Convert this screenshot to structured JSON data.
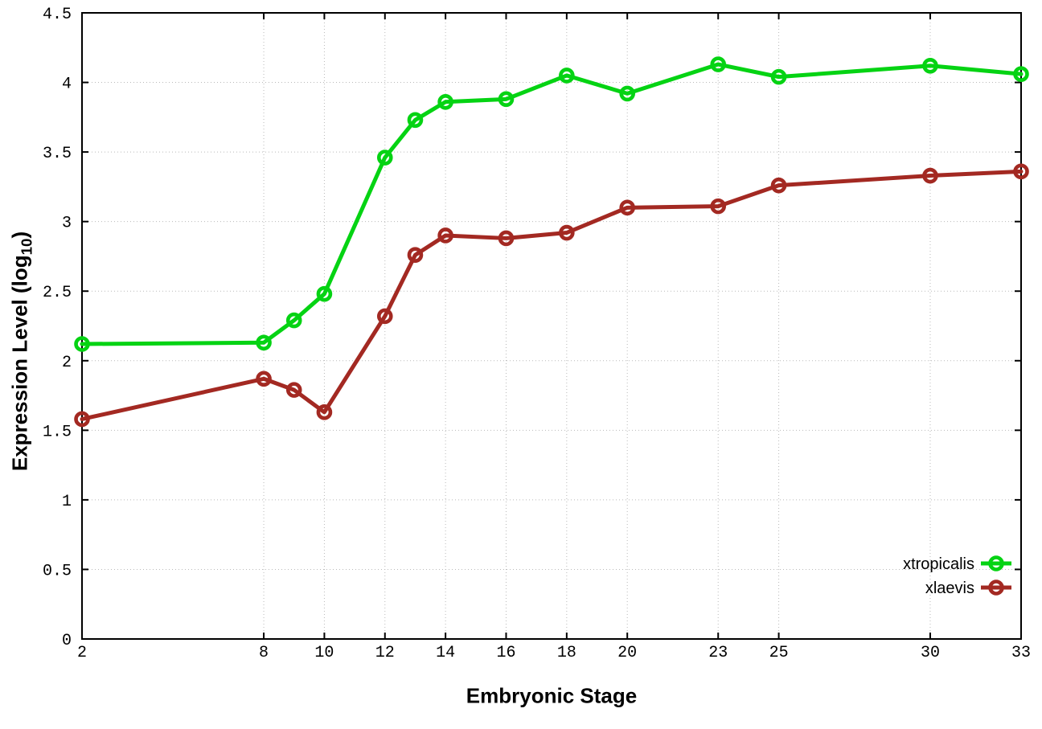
{
  "figure": {
    "background": "#ffffff",
    "border_color": "#000000",
    "grid_color": "#b9b9b9"
  },
  "axes": {
    "x_title": "Embryonic Stage",
    "y_title_main": "Expression Level (log",
    "y_title_sub": "10",
    "y_title_close": ")"
  },
  "chart_data": {
    "type": "line",
    "title": "",
    "xlabel": "Embryonic Stage",
    "ylabel": "Expression Level (log10)",
    "xlim": [
      2,
      33
    ],
    "ylim": [
      0,
      4.5
    ],
    "x_ticks": [
      2,
      8,
      10,
      12,
      14,
      16,
      18,
      20,
      23,
      25,
      30,
      33
    ],
    "y_ticks": [
      0,
      0.5,
      1,
      1.5,
      2,
      2.5,
      3,
      3.5,
      4,
      4.5
    ],
    "grid": true,
    "marker": "open-circle",
    "legend_position": "bottom-right",
    "x": [
      2,
      8,
      9,
      10,
      12,
      13,
      14,
      16,
      18,
      20,
      23,
      25,
      30,
      33
    ],
    "series": [
      {
        "name": "xtropicalis",
        "color": "#05d313",
        "values": [
          2.12,
          2.13,
          2.29,
          2.48,
          3.46,
          3.73,
          3.86,
          3.88,
          4.05,
          3.92,
          4.13,
          4.04,
          4.12,
          4.06
        ]
      },
      {
        "name": "xlaevis",
        "color": "#a32922",
        "values": [
          1.58,
          1.87,
          1.79,
          1.63,
          2.32,
          2.76,
          2.9,
          2.88,
          2.92,
          3.1,
          3.11,
          3.26,
          3.33,
          3.36
        ]
      }
    ]
  }
}
